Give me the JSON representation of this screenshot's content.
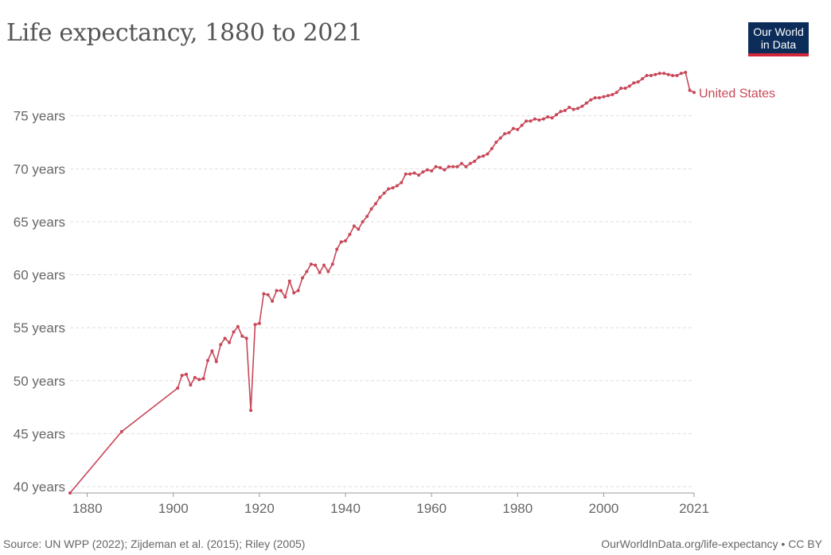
{
  "title": "Life expectancy, 1880 to 2021",
  "logo": {
    "line1": "Our World",
    "line2": "in Data"
  },
  "footer": {
    "source": "Source: UN WPP (2022); Zijdeman et al. (2015); Riley (2005)",
    "credit": "OurWorldInData.org/life-expectancy • CC BY"
  },
  "colors": {
    "series": "#c84758",
    "grid": "#dddddd",
    "axis": "#999999",
    "logo_bg": "#0c2d5a",
    "logo_accent": "#d0273a"
  },
  "chart_data": {
    "type": "line",
    "title": "Life expectancy, 1880 to 2021",
    "xlabel": "",
    "ylabel": "",
    "xlim": [
      1876,
      2021
    ],
    "ylim": [
      39.4,
      80
    ],
    "x_ticks": [
      {
        "value": 1880,
        "label": "1880"
      },
      {
        "value": 1900,
        "label": "1900"
      },
      {
        "value": 1920,
        "label": "1920"
      },
      {
        "value": 1940,
        "label": "1940"
      },
      {
        "value": 1960,
        "label": "1960"
      },
      {
        "value": 1980,
        "label": "1980"
      },
      {
        "value": 2000,
        "label": "2000"
      },
      {
        "value": 2021,
        "label": "2021"
      }
    ],
    "y_ticks": [
      {
        "value": 40,
        "label": "40 years"
      },
      {
        "value": 45,
        "label": "45 years"
      },
      {
        "value": 50,
        "label": "50 years"
      },
      {
        "value": 55,
        "label": "55 years"
      },
      {
        "value": 60,
        "label": "60 years"
      },
      {
        "value": 65,
        "label": "65 years"
      },
      {
        "value": 70,
        "label": "70 years"
      },
      {
        "value": 75,
        "label": "75 years"
      }
    ],
    "grid": true,
    "series": [
      {
        "name": "United States",
        "x": [
          1876,
          1888,
          1901,
          1902,
          1903,
          1904,
          1905,
          1906,
          1907,
          1908,
          1909,
          1910,
          1911,
          1912,
          1913,
          1914,
          1915,
          1916,
          1917,
          1918,
          1919,
          1920,
          1921,
          1922,
          1923,
          1924,
          1925,
          1926,
          1927,
          1928,
          1929,
          1930,
          1931,
          1932,
          1933,
          1934,
          1935,
          1936,
          1937,
          1938,
          1939,
          1940,
          1941,
          1942,
          1943,
          1944,
          1945,
          1946,
          1947,
          1948,
          1949,
          1950,
          1951,
          1952,
          1953,
          1954,
          1955,
          1956,
          1957,
          1958,
          1959,
          1960,
          1961,
          1962,
          1963,
          1964,
          1965,
          1966,
          1967,
          1968,
          1969,
          1970,
          1971,
          1972,
          1973,
          1974,
          1975,
          1976,
          1977,
          1978,
          1979,
          1980,
          1981,
          1982,
          1983,
          1984,
          1985,
          1986,
          1987,
          1988,
          1989,
          1990,
          1991,
          1992,
          1993,
          1994,
          1995,
          1996,
          1997,
          1998,
          1999,
          2000,
          2001,
          2002,
          2003,
          2004,
          2005,
          2006,
          2007,
          2008,
          2009,
          2010,
          2011,
          2012,
          2013,
          2014,
          2015,
          2016,
          2017,
          2018,
          2019,
          2020,
          2021
        ],
        "y": [
          39.4,
          45.2,
          49.3,
          50.5,
          50.6,
          49.6,
          50.3,
          50.1,
          50.2,
          51.9,
          52.8,
          51.8,
          53.4,
          54.0,
          53.6,
          54.6,
          55.1,
          54.2,
          54.0,
          47.2,
          55.3,
          55.4,
          58.2,
          58.1,
          57.5,
          58.5,
          58.5,
          57.9,
          59.4,
          58.3,
          58.5,
          59.7,
          60.3,
          61.0,
          60.9,
          60.2,
          60.9,
          60.3,
          61.0,
          62.4,
          63.1,
          63.2,
          63.8,
          64.6,
          64.3,
          65.0,
          65.5,
          66.2,
          66.7,
          67.3,
          67.7,
          68.1,
          68.2,
          68.4,
          68.7,
          69.5,
          69.5,
          69.6,
          69.4,
          69.7,
          69.9,
          69.8,
          70.2,
          70.1,
          69.9,
          70.2,
          70.2,
          70.2,
          70.5,
          70.2,
          70.5,
          70.7,
          71.1,
          71.2,
          71.4,
          71.9,
          72.5,
          72.9,
          73.3,
          73.4,
          73.8,
          73.7,
          74.1,
          74.5,
          74.5,
          74.7,
          74.6,
          74.7,
          74.9,
          74.8,
          75.1,
          75.4,
          75.5,
          75.8,
          75.6,
          75.7,
          75.9,
          76.2,
          76.5,
          76.7,
          76.7,
          76.8,
          76.9,
          77.0,
          77.2,
          77.6,
          77.6,
          77.8,
          78.1,
          78.2,
          78.5,
          78.8,
          78.8,
          78.9,
          79.0,
          79.0,
          78.9,
          78.8,
          78.8,
          79.0,
          79.1,
          77.4,
          77.2
        ]
      }
    ]
  }
}
